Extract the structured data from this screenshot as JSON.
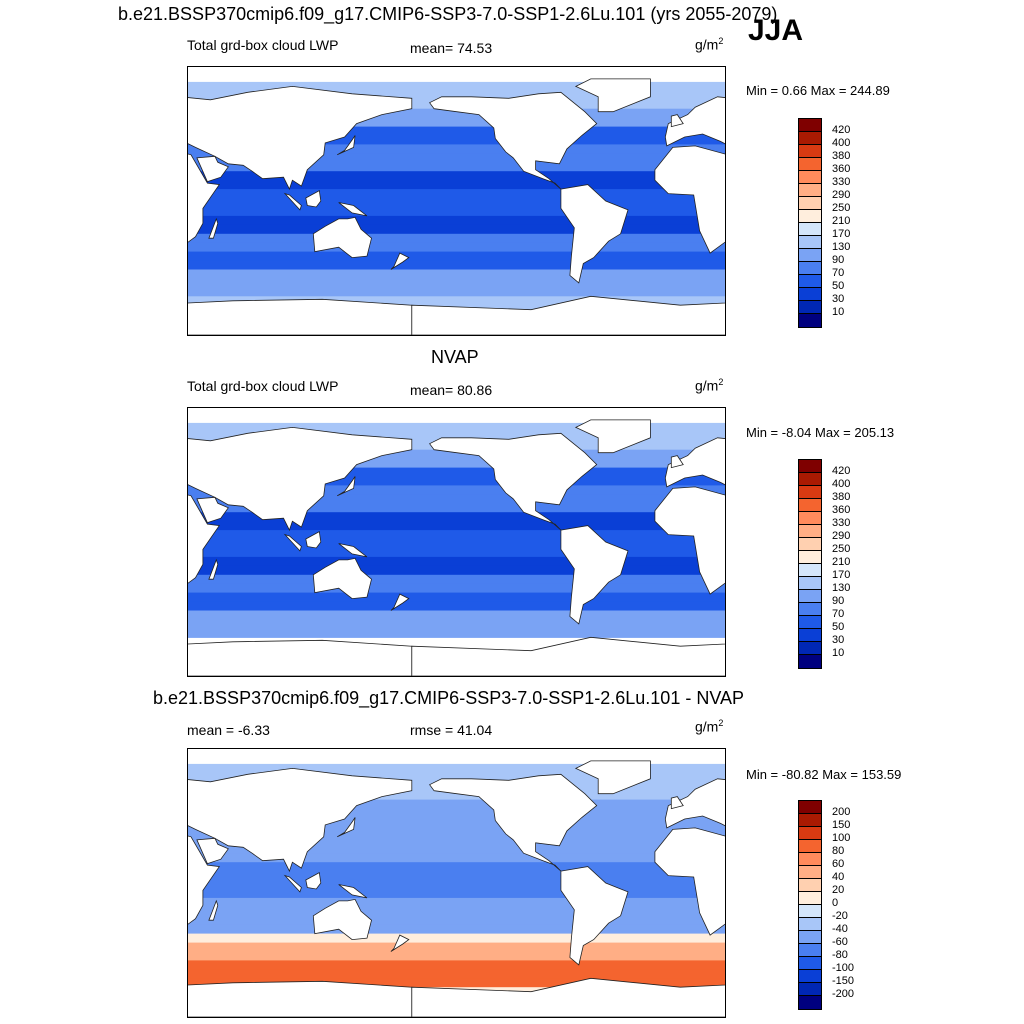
{
  "header": {
    "case_title": "b.e21.BSSP370cmip6.f09_g17.CMIP6-SSP3-7.0-SSP1-2.6Lu.101 (yrs 2055-2079)",
    "season": "JJA"
  },
  "panels": [
    {
      "title": "",
      "left_label": "Total grd-box cloud LWP",
      "center_label": "mean=  74.53",
      "units_base": "g/m",
      "units_exp": "2",
      "minmax": "Min =   0.66 Max = 244.89",
      "colorbar_labels": [
        "420",
        "400",
        "380",
        "360",
        "330",
        "290",
        "250",
        "210",
        "170",
        "130",
        "90",
        "70",
        "50",
        "30",
        "10"
      ]
    },
    {
      "title": "NVAP",
      "left_label": "Total grd-box cloud LWP",
      "center_label": "mean=  80.86",
      "units_base": "g/m",
      "units_exp": "2",
      "minmax": "Min =  -8.04 Max = 205.13",
      "colorbar_labels": [
        "420",
        "400",
        "380",
        "360",
        "330",
        "290",
        "250",
        "210",
        "170",
        "130",
        "90",
        "70",
        "50",
        "30",
        "10"
      ]
    },
    {
      "title": "b.e21.BSSP370cmip6.f09_g17.CMIP6-SSP3-7.0-SSP1-2.6Lu.101 - NVAP",
      "left_label": "mean =  -6.33",
      "center_label": "rmse =  41.04",
      "units_base": "g/m",
      "units_exp": "2",
      "minmax": "Min = -80.82 Max = 153.59",
      "colorbar_labels": [
        "200",
        "150",
        "100",
        "80",
        "60",
        "40",
        "20",
        "0",
        "-20",
        "-40",
        "-60",
        "-80",
        "-100",
        "-150",
        "-200"
      ]
    }
  ],
  "chart_data": [
    {
      "type": "heatmap",
      "title": "Total grd-box cloud LWP",
      "units": "g/m2",
      "mean": 74.53,
      "min": 0.66,
      "max": 244.89,
      "levels": [
        10,
        30,
        50,
        70,
        90,
        130,
        170,
        210,
        250,
        290,
        330,
        360,
        380,
        400,
        420
      ],
      "colors": [
        "#00007f",
        "#0027b4",
        "#0a3fd6",
        "#1f5ae8",
        "#4a7ff0",
        "#7aa3f4",
        "#a8c6f8",
        "#d4e6fb",
        "#ffeedd",
        "#ffd0b0",
        "#ffae85",
        "#ff8b5c",
        "#f4642f",
        "#d83a12",
        "#a91a02",
        "#7f0000"
      ],
      "ocean_level": 50
    },
    {
      "type": "heatmap",
      "title": "NVAP",
      "units": "g/m2",
      "mean": 80.86,
      "min": -8.04,
      "max": 205.13,
      "levels": [
        10,
        30,
        50,
        70,
        90,
        130,
        170,
        210,
        250,
        290,
        330,
        360,
        380,
        400,
        420
      ],
      "colors": [
        "#00007f",
        "#0027b4",
        "#0a3fd6",
        "#1f5ae8",
        "#4a7ff0",
        "#7aa3f4",
        "#a8c6f8",
        "#d4e6fb",
        "#ffeedd",
        "#ffd0b0",
        "#ffae85",
        "#ff8b5c",
        "#f4642f",
        "#d83a12",
        "#a91a02",
        "#7f0000"
      ],
      "ocean_level": 50
    },
    {
      "type": "heatmap",
      "title": "b.e21.BSSP370cmip6.f09_g17.CMIP6-SSP3-7.0-SSP1-2.6Lu.101 - NVAP",
      "units": "g/m2",
      "mean": -6.33,
      "rmse": 41.04,
      "min": -80.82,
      "max": 153.59,
      "levels": [
        -200,
        -150,
        -100,
        -80,
        -60,
        -40,
        -20,
        0,
        20,
        40,
        60,
        80,
        100,
        150,
        200
      ],
      "colors": [
        "#00007f",
        "#0027b4",
        "#0a3fd6",
        "#1f5ae8",
        "#4a7ff0",
        "#7aa3f4",
        "#a8c6f8",
        "#d4e6fb",
        "#ffeedd",
        "#ffd0b0",
        "#ffae85",
        "#ff8b5c",
        "#f4642f",
        "#d83a12",
        "#a91a02",
        "#7f0000"
      ]
    }
  ]
}
